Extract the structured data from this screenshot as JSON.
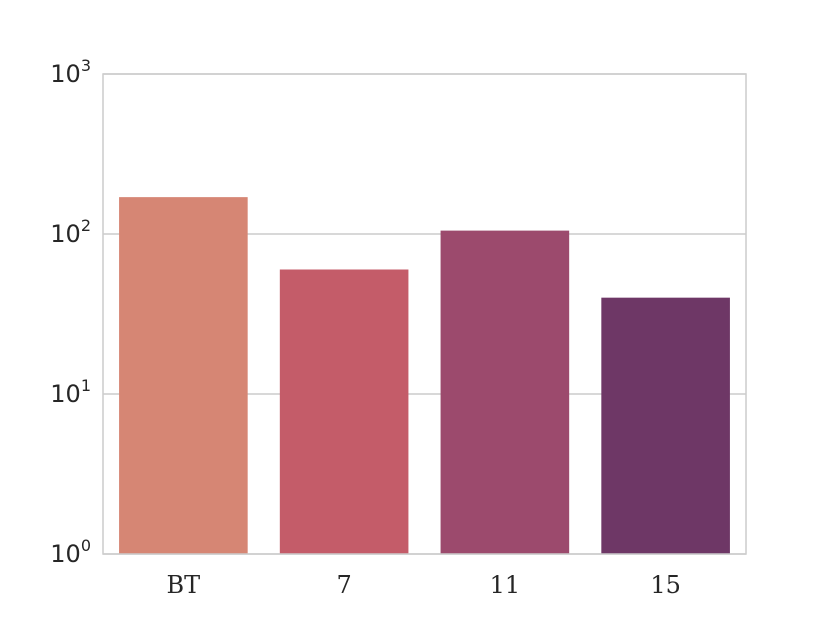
{
  "chart_data": {
    "type": "bar",
    "categories": [
      "BT",
      "7",
      "11",
      "15"
    ],
    "values": [
      170,
      60,
      105,
      40
    ],
    "colors": [
      "#d68674",
      "#c45c69",
      "#9c4a6d",
      "#6e3766"
    ],
    "yscale": "log",
    "ylim": [
      1,
      1000
    ],
    "yticks": [
      {
        "value": 1,
        "base": "10",
        "exp": "0"
      },
      {
        "value": 10,
        "base": "10",
        "exp": "1"
      },
      {
        "value": 100,
        "base": "10",
        "exp": "2"
      },
      {
        "value": 1000,
        "base": "10",
        "exp": "3"
      }
    ],
    "title": "",
    "xlabel": "",
    "ylabel": "",
    "grid": "horizontal",
    "legend": "none"
  }
}
